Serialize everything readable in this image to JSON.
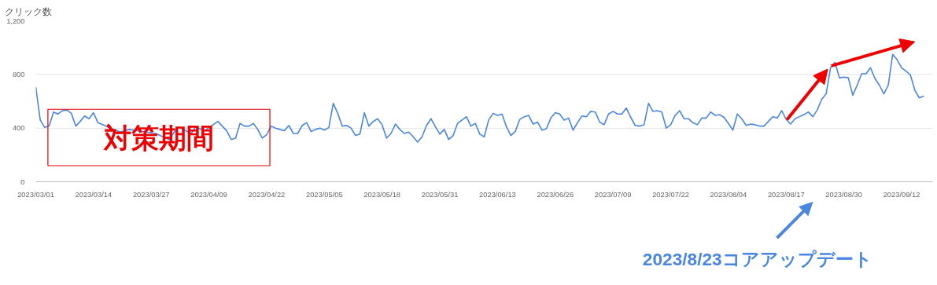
{
  "chart_data": {
    "type": "line",
    "ylabel": "クリック数",
    "x": [
      "2023-03-01",
      "2023-03-02",
      "2023-03-03",
      "2023-03-04",
      "2023-03-05",
      "2023-03-06",
      "2023-03-07",
      "2023-03-08",
      "2023-03-09",
      "2023-03-10",
      "2023-03-11",
      "2023-03-12",
      "2023-03-13",
      "2023-03-14",
      "2023-03-15",
      "2023-03-20",
      "2023-03-22",
      "2023-03-26",
      "2023-03-28",
      "2023-03-31",
      "2023-04-02",
      "2023-04-05",
      "2023-04-06",
      "2023-04-08",
      "2023-04-11",
      "2023-04-13",
      "2023-04-14",
      "2023-04-15",
      "2023-04-16",
      "2023-04-17",
      "2023-04-18",
      "2023-04-19",
      "2023-04-20",
      "2023-04-21",
      "2023-04-22",
      "2023-04-23",
      "2023-04-24",
      "2023-04-25",
      "2023-04-26",
      "2023-04-27",
      "2023-04-28",
      "2023-04-29",
      "2023-04-30",
      "2023-05-01",
      "2023-05-02",
      "2023-05-03",
      "2023-05-04",
      "2023-05-05",
      "2023-05-06",
      "2023-05-07",
      "2023-05-08",
      "2023-05-09",
      "2023-05-10",
      "2023-05-11",
      "2023-05-12",
      "2023-05-13",
      "2023-05-14",
      "2023-05-15",
      "2023-05-16",
      "2023-05-17",
      "2023-05-18",
      "2023-05-19",
      "2023-05-20",
      "2023-05-21",
      "2023-05-22",
      "2023-05-23",
      "2023-05-24",
      "2023-05-25",
      "2023-05-26",
      "2023-05-27",
      "2023-05-28",
      "2023-05-29",
      "2023-05-30",
      "2023-05-31",
      "2023-06-01",
      "2023-06-02",
      "2023-06-03",
      "2023-06-04",
      "2023-06-05",
      "2023-06-06",
      "2023-06-07",
      "2023-06-08",
      "2023-06-09",
      "2023-06-10",
      "2023-06-11",
      "2023-06-12",
      "2023-06-13",
      "2023-06-14",
      "2023-06-15",
      "2023-06-16",
      "2023-06-17",
      "2023-06-18",
      "2023-06-19",
      "2023-06-20",
      "2023-06-21",
      "2023-06-22",
      "2023-06-23",
      "2023-06-24",
      "2023-06-25",
      "2023-06-26",
      "2023-06-27",
      "2023-06-28",
      "2023-06-29",
      "2023-06-30",
      "2023-07-01",
      "2023-07-02",
      "2023-07-03",
      "2023-07-04",
      "2023-07-05",
      "2023-07-06",
      "2023-07-07",
      "2023-07-08",
      "2023-07-09",
      "2023-07-10",
      "2023-07-11",
      "2023-07-12",
      "2023-07-13",
      "2023-07-14",
      "2023-07-15",
      "2023-07-16",
      "2023-07-17",
      "2023-07-18",
      "2023-07-19",
      "2023-07-20",
      "2023-07-21",
      "2023-07-22",
      "2023-07-23",
      "2023-07-24",
      "2023-07-25",
      "2023-07-26",
      "2023-07-27",
      "2023-07-28",
      "2023-07-29",
      "2023-07-30",
      "2023-07-31",
      "2023-08-01",
      "2023-08-02",
      "2023-08-03",
      "2023-08-04",
      "2023-08-05",
      "2023-08-06",
      "2023-08-07",
      "2023-08-08",
      "2023-08-09",
      "2023-08-10",
      "2023-08-11",
      "2023-08-12",
      "2023-08-13",
      "2023-08-14",
      "2023-08-15",
      "2023-08-16",
      "2023-08-17",
      "2023-08-18",
      "2023-08-19",
      "2023-08-20",
      "2023-08-21",
      "2023-08-22",
      "2023-08-23",
      "2023-08-24",
      "2023-08-25",
      "2023-08-26",
      "2023-08-27",
      "2023-08-28",
      "2023-08-29",
      "2023-08-30",
      "2023-08-31",
      "2023-09-01",
      "2023-09-02",
      "2023-09-03",
      "2023-09-04",
      "2023-09-05",
      "2023-09-06",
      "2023-09-07",
      "2023-09-08",
      "2023-09-09",
      "2023-09-10",
      "2023-09-11",
      "2023-09-12",
      "2023-09-13",
      "2023-09-14",
      "2023-09-15",
      "2023-09-16",
      "2023-09-17"
    ],
    "series": [
      {
        "color": "#4a86e0",
        "values": [
          705,
          460,
          405,
          415,
          520,
          505,
          530,
          535,
          510,
          415,
          450,
          490,
          470,
          515,
          440,
          370,
          390,
          370,
          360,
          315,
          410,
          360,
          410,
          380,
          450,
          380,
          315,
          325,
          435,
          415,
          415,
          435,
          390,
          325,
          350,
          415,
          400,
          390,
          380,
          420,
          360,
          360,
          420,
          440,
          375,
          390,
          400,
          385,
          405,
          585,
          510,
          415,
          420,
          400,
          345,
          355,
          515,
          415,
          450,
          470,
          425,
          325,
          360,
          430,
          390,
          360,
          370,
          335,
          295,
          335,
          420,
          470,
          410,
          355,
          390,
          315,
          345,
          435,
          460,
          485,
          415,
          435,
          355,
          335,
          460,
          510,
          495,
          505,
          410,
          345,
          375,
          465,
          485,
          495,
          430,
          445,
          385,
          395,
          475,
          515,
          505,
          460,
          475,
          385,
          440,
          490,
          485,
          525,
          520,
          445,
          425,
          505,
          525,
          505,
          505,
          550,
          480,
          420,
          415,
          425,
          585,
          525,
          530,
          520,
          400,
          425,
          495,
          530,
          470,
          470,
          440,
          425,
          475,
          475,
          520,
          495,
          500,
          480,
          435,
          385,
          505,
          470,
          420,
          430,
          425,
          415,
          415,
          450,
          485,
          475,
          530,
          465,
          430,
          470,
          485,
          500,
          520,
          485,
          535,
          615,
          655,
          850,
          890,
          775,
          780,
          775,
          645,
          720,
          805,
          805,
          850,
          770,
          720,
          655,
          720,
          950,
          910,
          850,
          825,
          795,
          680,
          625,
          640
        ]
      }
    ],
    "xlim": [
      "2023-03-01",
      "2023-09-19"
    ],
    "xticks": [
      {
        "value": "2023-03-01",
        "label": "2023/03/01"
      },
      {
        "value": "2023-03-14",
        "label": "2023/03/14"
      },
      {
        "value": "2023-03-27",
        "label": "2023/03/27"
      },
      {
        "value": "2023-04-09",
        "label": "2023/04/09"
      },
      {
        "value": "2023-04-22",
        "label": "2023/04/22"
      },
      {
        "value": "2023-05-05",
        "label": "2023/05/05"
      },
      {
        "value": "2023-05-18",
        "label": "2023/05/18"
      },
      {
        "value": "2023-05-31",
        "label": "2023/05/31"
      },
      {
        "value": "2023-06-13",
        "label": "2023/06/13"
      },
      {
        "value": "2023-06-26",
        "label": "2023/06/26"
      },
      {
        "value": "2023-07-09",
        "label": "2023/07/09"
      },
      {
        "value": "2023-07-22",
        "label": "2023/07/22"
      },
      {
        "value": "2023-08-04",
        "label": "2023/08/04"
      },
      {
        "value": "2023-08-17",
        "label": "2023/08/17"
      },
      {
        "value": "2023-08-30",
        "label": "2023/08/30"
      },
      {
        "value": "2023-09-12",
        "label": "2023/09/12"
      }
    ],
    "ylim": [
      0,
      1200
    ],
    "yticks": [
      0,
      400,
      800,
      {
        "value": 1200,
        "label": "1,200"
      }
    ],
    "grid": "y",
    "annotations": [
      "対策期間",
      "2023/8/23コアアップデート"
    ]
  }
}
